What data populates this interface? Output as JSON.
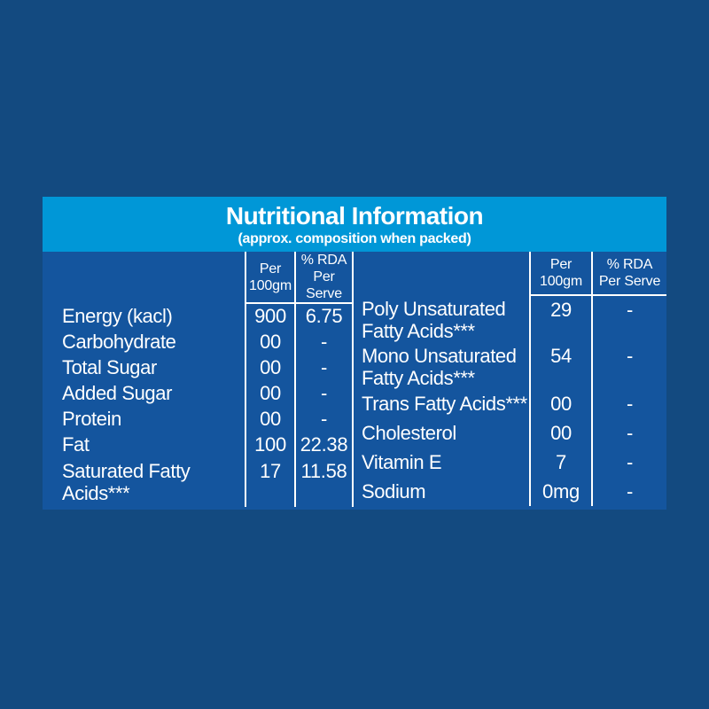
{
  "colors": {
    "background": "#134a80",
    "header_bg": "#0097d7",
    "table_bg": "#14559e",
    "text": "#ffffff",
    "line": "#ffffff"
  },
  "header": {
    "title": "Nutritional Information",
    "subtitle": "(approx. composition when packed)"
  },
  "column_headers": {
    "per_line1": "Per",
    "per_line2": "100gm",
    "rda_line1": "% RDA",
    "rda_line2": "Per Serve"
  },
  "left_table": {
    "rows": [
      {
        "label": "Energy (kacl)",
        "label2": "",
        "per100": "900",
        "rda": "6.75"
      },
      {
        "label": "Carbohydrate",
        "label2": "",
        "per100": "00",
        "rda": "-"
      },
      {
        "label": "Total Sugar",
        "label2": "",
        "per100": "00",
        "rda": "-"
      },
      {
        "label": "Added Sugar",
        "label2": "",
        "per100": "00",
        "rda": "-"
      },
      {
        "label": "Protein",
        "label2": "",
        "per100": "00",
        "rda": "-"
      },
      {
        "label": "Fat",
        "label2": "",
        "per100": "100",
        "rda": "22.38"
      },
      {
        "label": "Saturated Fatty",
        "label2": "Acids***",
        "per100": "17",
        "rda": "11.58"
      }
    ]
  },
  "right_table": {
    "rows": [
      {
        "label": "Poly Unsaturated",
        "label2": "Fatty Acids***",
        "per100": "29",
        "rda": "-"
      },
      {
        "label": "Mono Unsaturated",
        "label2": "Fatty Acids***",
        "per100": "54",
        "rda": "-"
      },
      {
        "label": "Trans Fatty Acids***",
        "label2": "",
        "per100": "00",
        "rda": "-"
      },
      {
        "label": "Cholesterol",
        "label2": "",
        "per100": "00",
        "rda": "-"
      },
      {
        "label": "Vitamin E",
        "label2": "",
        "per100": "7",
        "rda": "-"
      },
      {
        "label": "Sodium",
        "label2": "",
        "per100": "0mg",
        "rda": "-"
      }
    ]
  }
}
